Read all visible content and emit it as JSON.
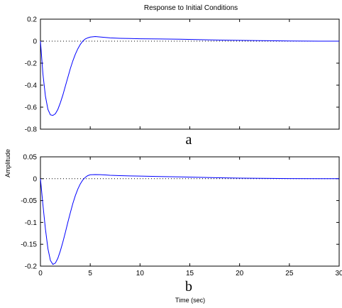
{
  "chart_data": {
    "type": "line",
    "title": "Response to Initial Conditions",
    "ylabel": "Amplitude",
    "xlabel": "Time (sec)",
    "line_color": "#0000ff",
    "reference_line": {
      "y": 0,
      "style": "dotted",
      "color": "#000000"
    },
    "panels": [
      {
        "letter": "a",
        "xlim": [
          0,
          30
        ],
        "ylim": [
          -0.8,
          0.2
        ],
        "xticks": [
          0,
          5,
          10,
          15,
          20,
          25,
          30
        ],
        "xtick_labels_shown": false,
        "yticks": [
          0.2,
          0,
          -0.2,
          -0.4,
          -0.6,
          -0.8
        ],
        "ytick_labels": [
          "0.2",
          "0",
          "-0.2",
          "-0.4",
          "-0.6",
          "-0.8"
        ],
        "series": [
          {
            "x": [
              0,
              0.25,
              0.5,
              0.75,
              1.0,
              1.25,
              1.5,
              1.75,
              2.0,
              2.25,
              2.5,
              2.75,
              3.0,
              3.25,
              3.5,
              3.75,
              4.0,
              4.25,
              4.5,
              4.75,
              5.0,
              5.5,
              6.0,
              6.5,
              7.0,
              8.0,
              9.0,
              10.0,
              12.0,
              14.0,
              16.0,
              18.0,
              20.0,
              22.0,
              25.0,
              28.0,
              30.0
            ],
            "y": [
              0,
              -0.3,
              -0.5,
              -0.62,
              -0.67,
              -0.675,
              -0.66,
              -0.62,
              -0.56,
              -0.49,
              -0.41,
              -0.33,
              -0.25,
              -0.18,
              -0.12,
              -0.07,
              -0.03,
              0.0,
              0.02,
              0.03,
              0.037,
              0.042,
              0.038,
              0.034,
              0.03,
              0.026,
              0.024,
              0.022,
              0.02,
              0.018,
              0.014,
              0.01,
              0.007,
              0.005,
              0.002,
              0.0,
              0.0
            ]
          }
        ]
      },
      {
        "letter": "b",
        "xlim": [
          0,
          30
        ],
        "ylim": [
          -0.2,
          0.05
        ],
        "xticks": [
          0,
          5,
          10,
          15,
          20,
          25,
          30
        ],
        "xtick_labels": [
          "0",
          "5",
          "10",
          "15",
          "20",
          "25",
          "30"
        ],
        "xtick_labels_shown": true,
        "yticks": [
          0.05,
          0,
          -0.05,
          -0.1,
          -0.15,
          -0.2
        ],
        "ytick_labels": [
          "0.05",
          "0",
          "-0.05",
          "-0.1",
          "-0.15",
          "-0.2"
        ],
        "series": [
          {
            "x": [
              0,
              0.25,
              0.5,
              0.75,
              1.0,
              1.25,
              1.5,
              1.75,
              2.0,
              2.25,
              2.5,
              2.75,
              3.0,
              3.25,
              3.5,
              3.75,
              4.0,
              4.25,
              4.5,
              4.75,
              5.0,
              5.5,
              6.0,
              6.5,
              7.0,
              8.0,
              9.0,
              10.0,
              12.0,
              14.0,
              16.0,
              18.0,
              20.0,
              22.0,
              25.0,
              28.0,
              30.0
            ],
            "y": [
              0,
              -0.06,
              -0.115,
              -0.16,
              -0.187,
              -0.196,
              -0.193,
              -0.182,
              -0.165,
              -0.145,
              -0.123,
              -0.1,
              -0.078,
              -0.057,
              -0.039,
              -0.024,
              -0.012,
              -0.003,
              0.003,
              0.007,
              0.009,
              0.0095,
              0.0092,
              0.0085,
              0.0078,
              0.007,
              0.0064,
              0.006,
              0.005,
              0.0042,
              0.0032,
              0.0022,
              0.0014,
              0.0008,
              0.0003,
              0.0,
              0.0
            ]
          }
        ]
      }
    ]
  }
}
